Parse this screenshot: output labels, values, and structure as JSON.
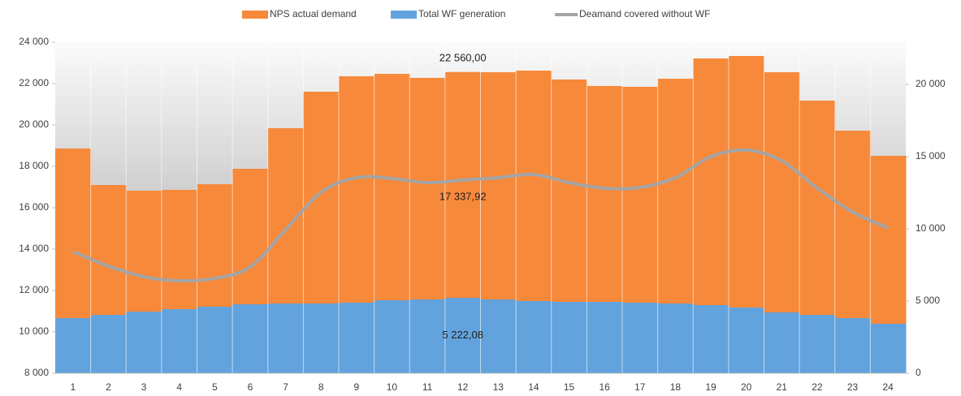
{
  "chart_data": {
    "type": "stepped-area-line",
    "categories": [
      "1",
      "2",
      "3",
      "4",
      "5",
      "6",
      "7",
      "8",
      "9",
      "10",
      "11",
      "12",
      "13",
      "14",
      "15",
      "16",
      "17",
      "18",
      "19",
      "20",
      "21",
      "22",
      "23",
      "24"
    ],
    "series": [
      {
        "name": "NPS actual demand",
        "color": "#f7893a",
        "kind": "area",
        "axis": "y",
        "values": [
          18863,
          17098,
          16824,
          16863,
          17137,
          17882,
          19843,
          21608,
          22353,
          22471,
          22275,
          22560,
          22549,
          22627,
          22196,
          21882,
          21843,
          22235,
          23216,
          23333,
          22549,
          21176,
          19725,
          18510
        ],
        "value_labels": [
          null,
          null,
          null,
          null,
          null,
          null,
          null,
          null,
          null,
          null,
          null,
          "22 560,00",
          null,
          null,
          null,
          null,
          null,
          null,
          null,
          null,
          null,
          null,
          null,
          null
        ]
      },
      {
        "name": "Total WF generation",
        "color": "#62a3dd",
        "kind": "area",
        "axis": "y2",
        "values": [
          3820,
          4045,
          4270,
          4438,
          4607,
          4775,
          4831,
          4831,
          4888,
          5056,
          5112,
          5222.08,
          5112,
          5000,
          4944,
          4944,
          4888,
          4831,
          4719,
          4551,
          4213,
          4045,
          3820,
          3427
        ],
        "value_labels": [
          null,
          null,
          null,
          null,
          null,
          null,
          null,
          null,
          null,
          null,
          null,
          "5 222,08",
          null,
          null,
          null,
          null,
          null,
          null,
          null,
          null,
          null,
          null,
          null,
          null
        ]
      },
      {
        "name": "Deamand covered without WF",
        "color": "#a5a5a5",
        "kind": "line",
        "axis": "y",
        "values": [
          13882,
          13176,
          12667,
          12471,
          12588,
          13137,
          14941,
          16745,
          17451,
          17412,
          17216,
          17337.92,
          17451,
          17608,
          17216,
          16941,
          16980,
          17451,
          18471,
          18784,
          18275,
          16941,
          15804,
          15020
        ],
        "value_labels": [
          null,
          null,
          null,
          null,
          null,
          null,
          null,
          null,
          null,
          null,
          null,
          "17 337,92",
          null,
          null,
          null,
          null,
          null,
          null,
          null,
          null,
          null,
          null,
          null,
          null
        ]
      }
    ],
    "ylim": [
      8000,
      24000
    ],
    "yticks": [
      {
        "value": 8000,
        "label": "8 000"
      },
      {
        "value": 10000,
        "label": "10 000"
      },
      {
        "value": 12000,
        "label": "12 000"
      },
      {
        "value": 14000,
        "label": "14 000"
      },
      {
        "value": 16000,
        "label": "16 000"
      },
      {
        "value": 18000,
        "label": "18 000"
      },
      {
        "value": 20000,
        "label": "20 000"
      },
      {
        "value": 22000,
        "label": "22 000"
      },
      {
        "value": 24000,
        "label": "24 000"
      }
    ],
    "y2lim": [
      0,
      22921
    ],
    "y2ticks": [
      0,
      {
        "value": 5000,
        "label": "5 000"
      },
      {
        "value": 10000,
        "label": "10 000"
      },
      {
        "value": 15000,
        "label": "15 000"
      },
      {
        "value": 20000,
        "label": "20 000"
      }
    ],
    "legend": "top"
  }
}
